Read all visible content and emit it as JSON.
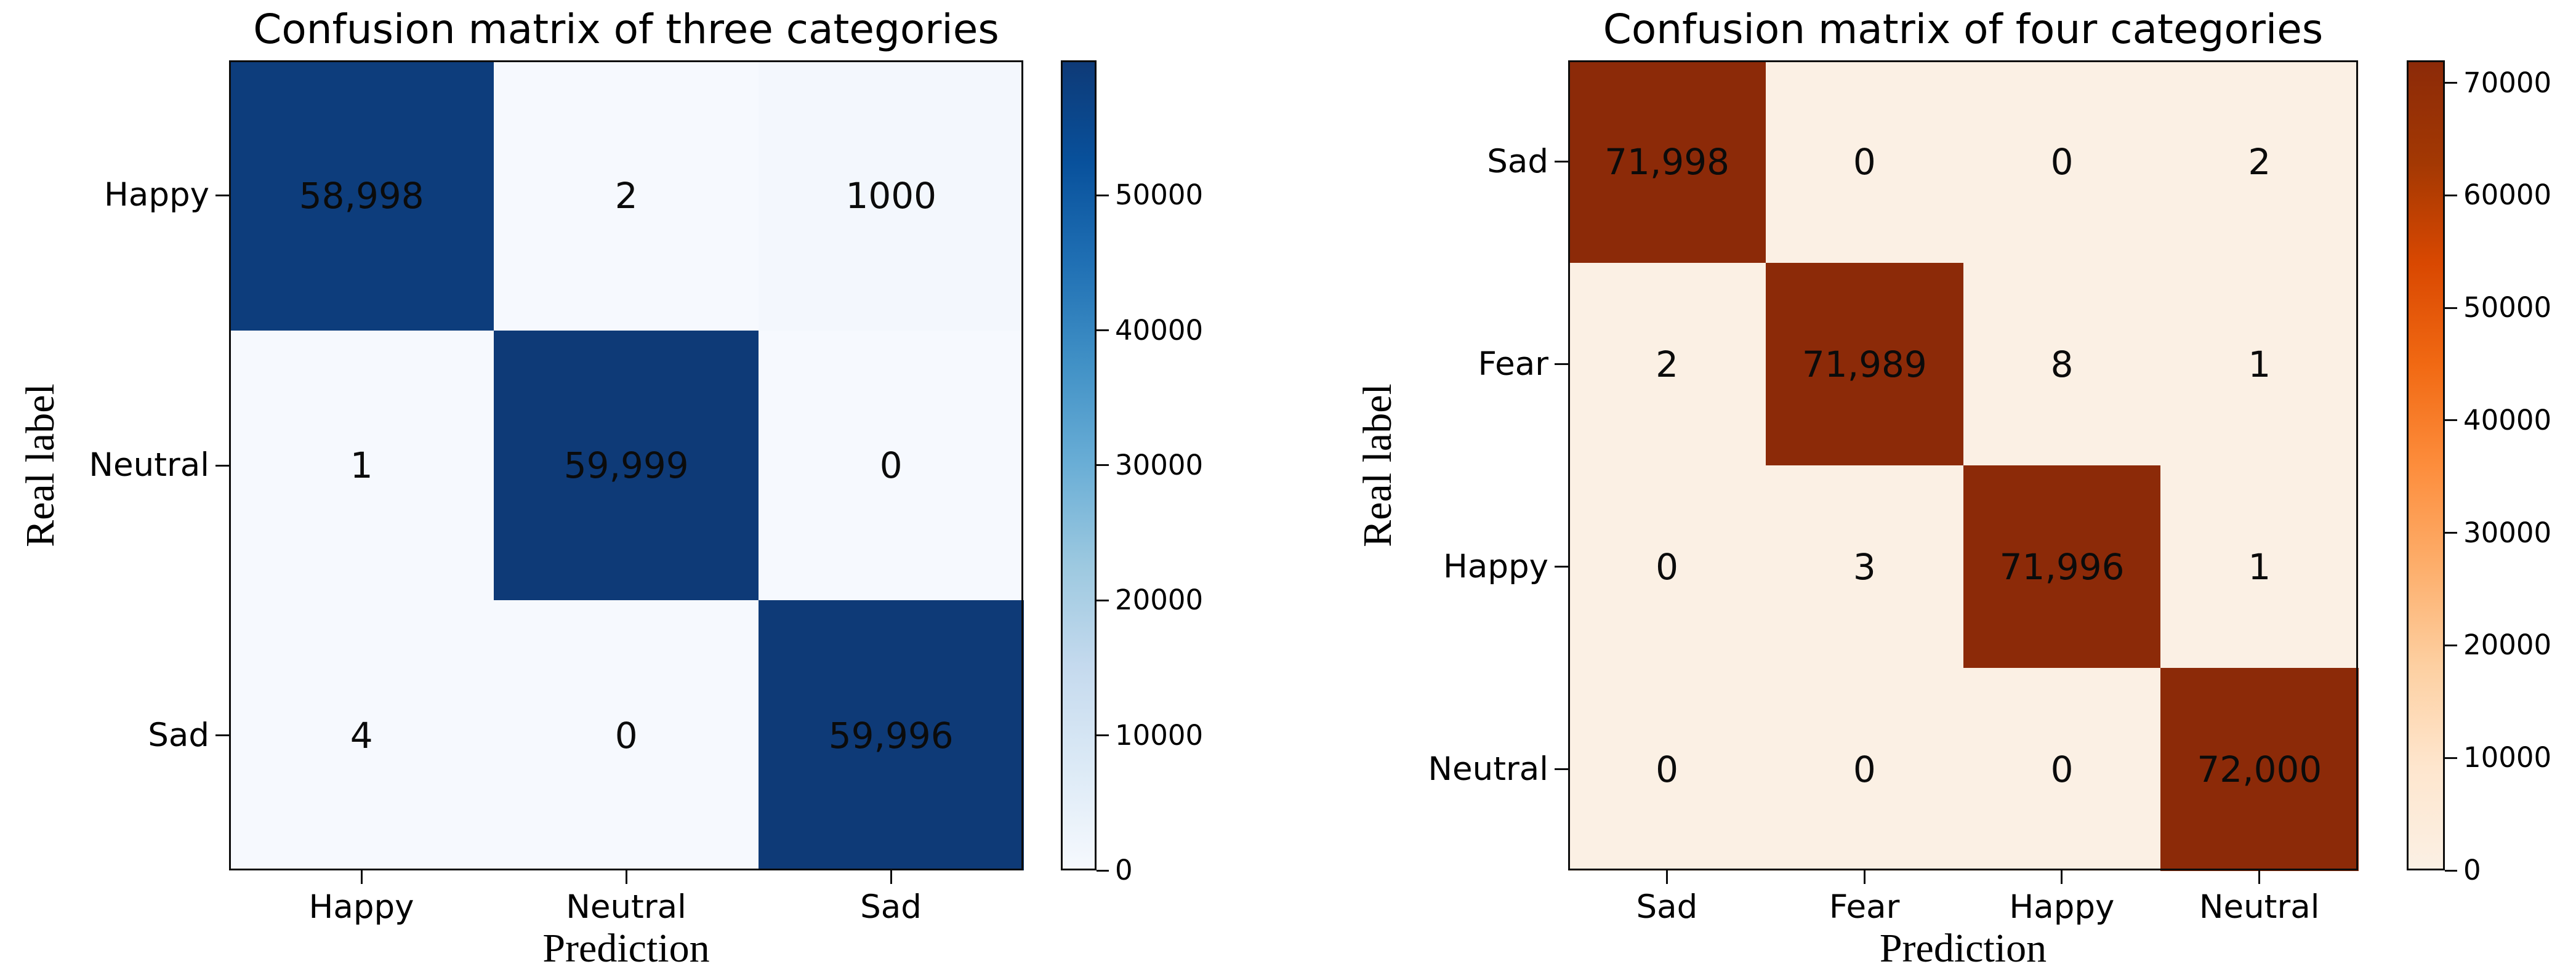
{
  "figure": {
    "background_color": "#ffffff",
    "text_color": "#000000"
  },
  "chart_data": [
    {
      "type": "heatmap",
      "title": "Confusion matrix of three categories",
      "xlabel": "Prediction",
      "ylabel": "Real label",
      "x_ticklabels": [
        "Happy",
        "Neutral",
        "Sad"
      ],
      "y_ticklabels": [
        "Happy",
        "Neutral",
        "Sad"
      ],
      "values": [
        [
          58998,
          2,
          1000
        ],
        [
          1,
          59999,
          0
        ],
        [
          4,
          0,
          59996
        ]
      ],
      "display_values": [
        [
          "58,998",
          "2",
          "1000"
        ],
        [
          "1",
          "59,999",
          "0"
        ],
        [
          "4",
          "0",
          "59,996"
        ]
      ],
      "vmin": 0,
      "vmax": 59999,
      "colormap": {
        "name": "Blues",
        "stops": [
          "#f6f9fe",
          "#dceaf6",
          "#c5daee",
          "#9dc9e0",
          "#6aaed6",
          "#4191c6",
          "#2070b4",
          "#08519c",
          "#0e3a77"
        ]
      },
      "colorbar_ticks": [
        0,
        10000,
        20000,
        30000,
        40000,
        50000
      ],
      "colorbar_ticklabels": [
        "0",
        "10000",
        "20000",
        "30000",
        "40000",
        "50000"
      ],
      "colorbar_position": "right",
      "grid": false
    },
    {
      "type": "heatmap",
      "title": "Confusion matrix of four categories",
      "xlabel": "Prediction",
      "ylabel": "Real label",
      "x_ticklabels": [
        "Sad",
        "Fear",
        "Happy",
        "Neutral"
      ],
      "y_ticklabels": [
        "Sad",
        "Fear",
        "Happy",
        "Neutral"
      ],
      "values": [
        [
          71998,
          0,
          0,
          2
        ],
        [
          2,
          71989,
          8,
          1
        ],
        [
          0,
          3,
          71996,
          1
        ],
        [
          0,
          0,
          0,
          72000
        ]
      ],
      "display_values": [
        [
          "71,998",
          "0",
          "0",
          "2"
        ],
        [
          "2",
          "71,989",
          "8",
          "1"
        ],
        [
          "0",
          "3",
          "71,996",
          "1"
        ],
        [
          "0",
          "0",
          "0",
          "72,000"
        ]
      ],
      "vmin": 0,
      "vmax": 72000,
      "colormap": {
        "name": "Oranges",
        "stops": [
          "#fbf0e4",
          "#fee6ce",
          "#fdd0a2",
          "#fdae6b",
          "#fd8d3c",
          "#f16913",
          "#d94801",
          "#a33803",
          "#8c2a08"
        ]
      },
      "colorbar_ticks": [
        0,
        10000,
        20000,
        30000,
        40000,
        50000,
        60000,
        70000
      ],
      "colorbar_ticklabels": [
        "0",
        "10000",
        "20000",
        "30000",
        "40000",
        "50000",
        "60000",
        "70000"
      ],
      "colorbar_position": "right",
      "grid": false
    }
  ]
}
